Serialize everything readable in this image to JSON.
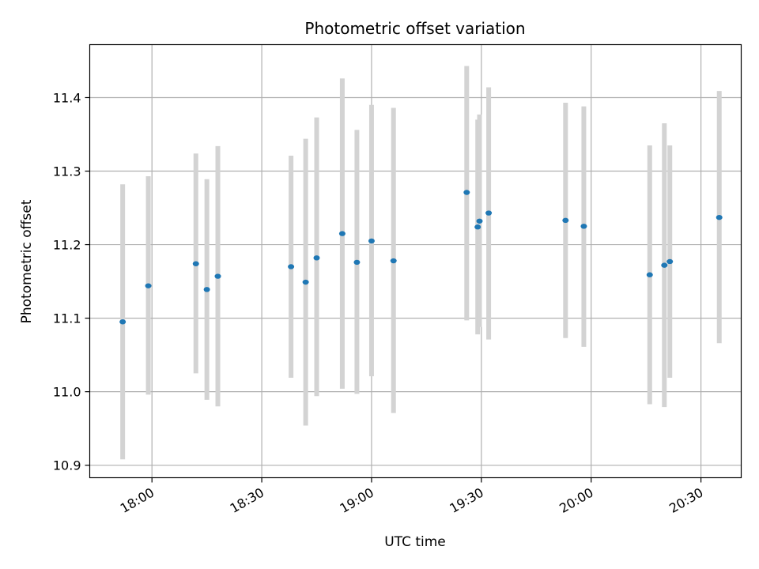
{
  "chart_data": {
    "type": "scatter",
    "title": "Photometric offset variation",
    "xlabel": "UTC time",
    "ylabel": "Photometric offset",
    "x_type": "time",
    "xlim": [
      "17:43",
      "20:41"
    ],
    "ylim": [
      10.883,
      11.472
    ],
    "x_ticks": [
      "18:00",
      "18:30",
      "19:00",
      "19:30",
      "20:00",
      "20:30"
    ],
    "y_ticks": [
      10.9,
      11.0,
      11.1,
      11.2,
      11.3,
      11.4
    ],
    "y_tick_labels": [
      "10.9",
      "11.0",
      "11.1",
      "11.2",
      "11.3",
      "11.4"
    ],
    "grid": true,
    "marker_color": "#1f77b4",
    "errorbar_color": "#d3d3d3",
    "points": [
      {
        "x": "17:52",
        "y": 11.095,
        "ylow": 10.908,
        "yhigh": 11.282
      },
      {
        "x": "17:59",
        "y": 11.144,
        "ylow": 10.996,
        "yhigh": 11.293
      },
      {
        "x": "18:12",
        "y": 11.174,
        "ylow": 11.025,
        "yhigh": 11.324
      },
      {
        "x": "18:15",
        "y": 11.139,
        "ylow": 10.989,
        "yhigh": 11.289
      },
      {
        "x": "18:18",
        "y": 11.157,
        "ylow": 10.98,
        "yhigh": 11.334
      },
      {
        "x": "18:38",
        "y": 11.17,
        "ylow": 11.019,
        "yhigh": 11.321
      },
      {
        "x": "18:42",
        "y": 11.149,
        "ylow": 10.954,
        "yhigh": 11.344
      },
      {
        "x": "18:45",
        "y": 11.182,
        "ylow": 10.994,
        "yhigh": 11.373
      },
      {
        "x": "18:52",
        "y": 11.215,
        "ylow": 11.004,
        "yhigh": 11.426
      },
      {
        "x": "18:56",
        "y": 11.176,
        "ylow": 10.997,
        "yhigh": 11.356
      },
      {
        "x": "18:60",
        "y": 11.205,
        "ylow": 11.021,
        "yhigh": 11.39
      },
      {
        "x": "19:06",
        "y": 11.178,
        "ylow": 10.971,
        "yhigh": 11.386
      },
      {
        "x": "19:26",
        "y": 11.271,
        "ylow": 11.097,
        "yhigh": 11.443
      },
      {
        "x": "19:29",
        "y": 11.224,
        "ylow": 11.078,
        "yhigh": 11.37
      },
      {
        "x": "19:29.5",
        "y": 11.232,
        "ylow": 11.088,
        "yhigh": 11.377
      },
      {
        "x": "19:32",
        "y": 11.243,
        "ylow": 11.071,
        "yhigh": 11.414
      },
      {
        "x": "19:53",
        "y": 11.233,
        "ylow": 11.073,
        "yhigh": 11.393
      },
      {
        "x": "19:58",
        "y": 11.225,
        "ylow": 11.061,
        "yhigh": 11.388
      },
      {
        "x": "20:16",
        "y": 11.159,
        "ylow": 10.983,
        "yhigh": 11.335
      },
      {
        "x": "20:20",
        "y": 11.172,
        "ylow": 10.979,
        "yhigh": 11.365
      },
      {
        "x": "20:21.5",
        "y": 11.177,
        "ylow": 11.019,
        "yhigh": 11.335
      },
      {
        "x": "20:35",
        "y": 11.237,
        "ylow": 11.066,
        "yhigh": 11.409
      }
    ]
  }
}
